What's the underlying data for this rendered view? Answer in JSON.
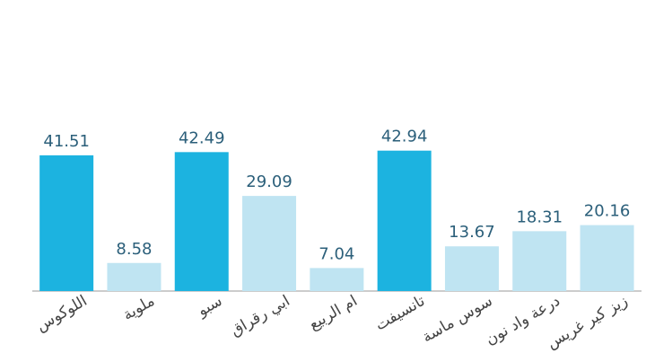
{
  "chart_data": {
    "type": "bar",
    "categories": [
      "اللوكوس",
      "ملوية",
      "سبو",
      "ابي رقراق",
      "ام الربيع",
      "تانسيفت",
      "سوس ماسة",
      "درعة واد نون",
      "زيز كير غريس"
    ],
    "values": [
      41.51,
      8.58,
      42.49,
      29.09,
      7.04,
      42.94,
      13.67,
      18.31,
      20.16
    ],
    "colors": [
      "#1cb3e0",
      "#bfe4f2",
      "#1cb3e0",
      "#bfe4f2",
      "#bfe4f2",
      "#1cb3e0",
      "#bfe4f2",
      "#bfe4f2",
      "#bfe4f2"
    ],
    "ylim": [
      0,
      50
    ]
  }
}
